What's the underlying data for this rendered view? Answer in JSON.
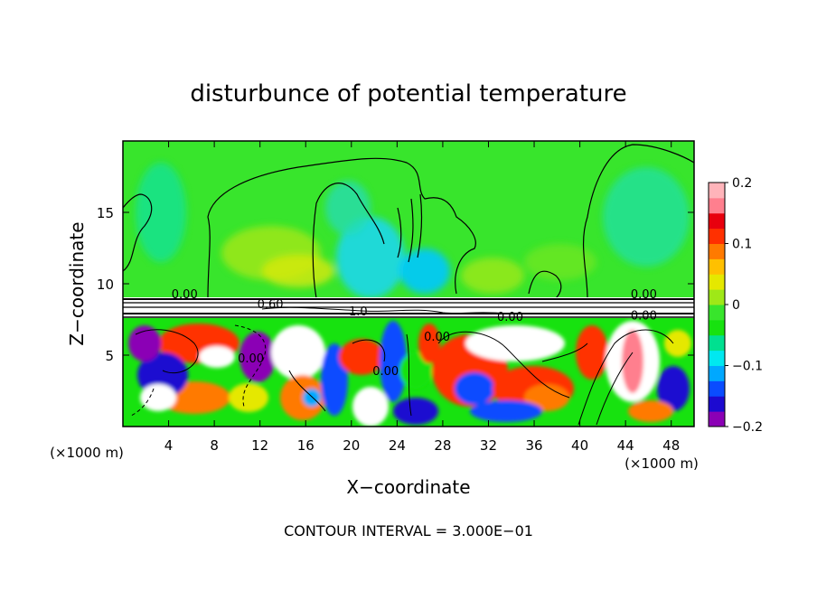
{
  "chart_data": {
    "type": "heatmap",
    "title": "disturbunce of potential temperature",
    "xlabel": "X−coordinate",
    "ylabel": "Z−coordinate",
    "x_unit_label": "(×1000 m)",
    "x_unit_label_right": "(×1000 m)",
    "footer": "CONTOUR INTERVAL = 3.000E−01",
    "xlim": [
      0,
      50
    ],
    "ylim": [
      0,
      20
    ],
    "x_ticks": [
      4,
      8,
      12,
      16,
      20,
      24,
      28,
      32,
      36,
      40,
      44,
      48
    ],
    "y_ticks": [
      5,
      10,
      15
    ],
    "colorbar": {
      "range": [
        -0.2,
        0.2
      ],
      "ticks": [
        0.2,
        0.1,
        0,
        -0.1,
        -0.2
      ],
      "tick_labels": [
        "0.2",
        "0.1",
        "0",
        "−0.1",
        "−0.2"
      ],
      "colors": [
        "#8b00b5",
        "#1c0ad0",
        "#0a4cff",
        "#00a8ff",
        "#00e8f0",
        "#00e090",
        "#17e20f",
        "#38e52c",
        "#9fe817",
        "#e5e800",
        "#ffc000",
        "#ff7a00",
        "#ff3000",
        "#e8000e",
        "#ff7f8e",
        "#ffb4ba"
      ]
    },
    "contour_labels": [
      {
        "text": "0.00",
        "x": 5.4,
        "z": 9.0
      },
      {
        "text": "0.60",
        "x": 12.9,
        "z": 8.3
      },
      {
        "text": "1.0",
        "x": 20.6,
        "z": 7.8
      },
      {
        "text": "0.00",
        "x": 33.9,
        "z": 7.4
      },
      {
        "text": "0.00",
        "x": 45.6,
        "z": 9.0
      },
      {
        "text": "0.00",
        "x": 45.6,
        "z": 7.5
      },
      {
        "text": "0.00",
        "x": 11.2,
        "z": 4.5
      },
      {
        "text": "0.00",
        "x": 23.0,
        "z": 3.6
      },
      {
        "text": "0.00",
        "x": 27.5,
        "z": 6.0
      }
    ],
    "field": {
      "upper_layer": {
        "z_range": [
          9,
          20
        ],
        "dominant_value": 0.02
      },
      "interface_layer": {
        "z_range": [
          7.6,
          9
        ],
        "dominant_value": 0.3
      },
      "lower_layer": {
        "z_range": [
          0,
          7.6
        ],
        "value_range": [
          -0.2,
          0.2
        ]
      }
    },
    "grid": false
  }
}
